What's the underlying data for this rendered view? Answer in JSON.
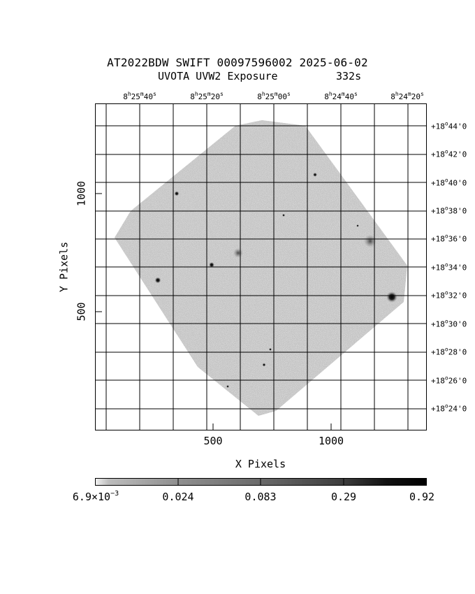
{
  "header": {
    "title": "AT2022BDW SWIFT 00097596002 2025-06-02",
    "subtitle_instrument": "UVOTA UVW2 Exposure",
    "subtitle_exposure": "332s"
  },
  "ra_labels": [
    {
      "h": "8",
      "m": "25",
      "s": "40"
    },
    {
      "h": "8",
      "m": "25",
      "s": "20"
    },
    {
      "h": "8",
      "m": "25",
      "s": "00"
    },
    {
      "h": "8",
      "m": "24",
      "s": "40"
    },
    {
      "h": "8",
      "m": "24",
      "s": "20"
    }
  ],
  "dec_labels": [
    {
      "deg": "+18",
      "min": "44"
    },
    {
      "deg": "+18",
      "min": "42"
    },
    {
      "deg": "+18",
      "min": "40"
    },
    {
      "deg": "+18",
      "min": "38"
    },
    {
      "deg": "+18",
      "min": "36"
    },
    {
      "deg": "+18",
      "min": "34"
    },
    {
      "deg": "+18",
      "min": "32"
    },
    {
      "deg": "+18",
      "min": "30"
    },
    {
      "deg": "+18",
      "min": "28"
    },
    {
      "deg": "+18",
      "min": "26"
    },
    {
      "deg": "+18",
      "min": "24"
    }
  ],
  "x_axis": {
    "label": "X Pixels",
    "ticks": [
      "500",
      "1000"
    ]
  },
  "y_axis": {
    "label": "Y Pixels",
    "ticks": [
      "1000",
      "500"
    ]
  },
  "colorbar": {
    "ticks": [
      {
        "mantissa": "6.9×10",
        "exponent": "−3"
      },
      {
        "mantissa": "0.024",
        "exponent": ""
      },
      {
        "mantissa": "0.083",
        "exponent": ""
      },
      {
        "mantissa": "0.29",
        "exponent": ""
      },
      {
        "mantissa": "0.92",
        "exponent": ""
      }
    ]
  },
  "colors": {
    "image_bg": "#ffffff",
    "noise": "#8c8c8c",
    "grid": "#000000"
  }
}
